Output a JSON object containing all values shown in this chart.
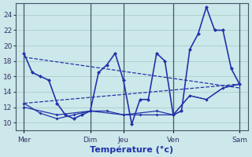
{
  "title": "Température (°c)",
  "background_color": "#cce8ea",
  "grid_color": "#aacccc",
  "line_color": "#2233aa",
  "xlim": [
    0,
    28
  ],
  "ylim": [
    9.0,
    25.5
  ],
  "yticks": [
    10,
    12,
    14,
    16,
    18,
    20,
    22,
    24
  ],
  "day_labels": [
    "Mer",
    "Dim",
    "Jeu",
    "Ven",
    "Sam"
  ],
  "day_positions": [
    1,
    9,
    13,
    19,
    27
  ],
  "vline_positions": [
    1,
    9,
    13,
    19,
    27
  ],
  "series": {
    "main": {
      "x": [
        1,
        2,
        3,
        4,
        5,
        6,
        7,
        8,
        9,
        10,
        11,
        12,
        13,
        14,
        15,
        16,
        17,
        18,
        19,
        20,
        21,
        22,
        23,
        24,
        25,
        26,
        27
      ],
      "y": [
        19,
        16.5,
        16,
        15.5,
        12.5,
        11,
        10.5,
        11,
        11.5,
        16.5,
        17.5,
        19,
        15.5,
        9.8,
        13,
        13,
        19,
        18,
        11,
        11.5,
        19.5,
        21.5,
        25,
        22,
        22,
        17,
        15
      ]
    },
    "trend_down": {
      "x": [
        1,
        27
      ],
      "y": [
        18.5,
        14.5
      ]
    },
    "trend_up": {
      "x": [
        1,
        27
      ],
      "y": [
        12.5,
        15.0
      ]
    },
    "low_line": {
      "x": [
        1,
        3,
        5,
        7,
        9,
        11,
        13,
        15,
        17,
        19,
        21,
        23,
        25,
        27
      ],
      "y": [
        12.5,
        11.2,
        10.5,
        11,
        11.5,
        11.5,
        11,
        11,
        11,
        11,
        13.5,
        13,
        14.5,
        15
      ]
    },
    "flat_line": {
      "x": [
        1,
        5,
        9,
        13,
        17,
        19,
        21,
        23,
        25,
        27
      ],
      "y": [
        12.0,
        11.0,
        11.5,
        11.0,
        11.5,
        11.0,
        13.5,
        13.0,
        14.5,
        15.0
      ]
    }
  }
}
